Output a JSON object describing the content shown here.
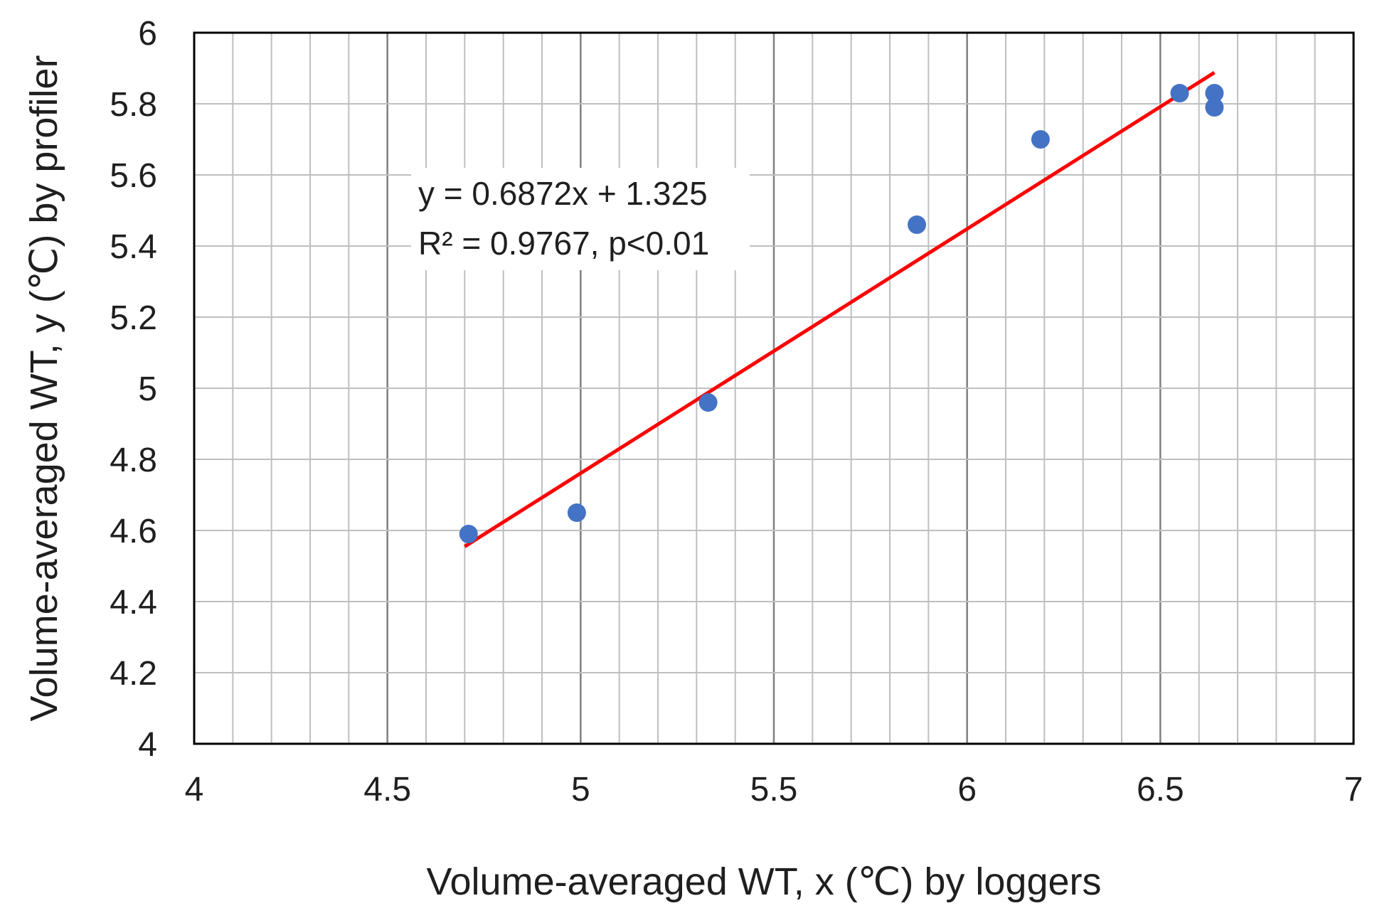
{
  "chart_data": {
    "type": "scatter",
    "xlabel": "Volume-averaged WT, x (℃) by loggers",
    "ylabel": "Volume-averaged WT, y (℃) by profiler",
    "xlim": [
      4,
      7
    ],
    "ylim": [
      4,
      6
    ],
    "x_ticks": [
      "4",
      "4.5",
      "5",
      "5.5",
      "6",
      "6.5",
      "7"
    ],
    "y_ticks": [
      "4",
      "4.2",
      "4.4",
      "4.6",
      "4.8",
      "5",
      "5.2",
      "5.4",
      "5.6",
      "5.8",
      "6"
    ],
    "x_major_step": 0.5,
    "x_minor_step": 0.1,
    "y_step": 0.2,
    "grid": true,
    "series": [
      {
        "color": "#4472c4",
        "points": [
          {
            "x": 4.71,
            "y": 4.59
          },
          {
            "x": 4.99,
            "y": 4.65
          },
          {
            "x": 5.33,
            "y": 4.96
          },
          {
            "x": 5.87,
            "y": 5.46
          },
          {
            "x": 6.19,
            "y": 5.7
          },
          {
            "x": 6.55,
            "y": 5.83
          },
          {
            "x": 6.64,
            "y": 5.83
          },
          {
            "x": 6.64,
            "y": 5.79
          }
        ]
      }
    ],
    "trendline": {
      "color": "#ff0000",
      "slope": 0.6872,
      "intercept": 1.325,
      "x_range": [
        4.7,
        6.64
      ],
      "label_lines": [
        "y = 0.6872x + 1.325",
        "R² = 0.9767, p<0.01"
      ]
    },
    "colors": {
      "grid_minor": "#bfbfbf",
      "grid_major": "#7f7f7f",
      "frame": "#000000"
    }
  }
}
